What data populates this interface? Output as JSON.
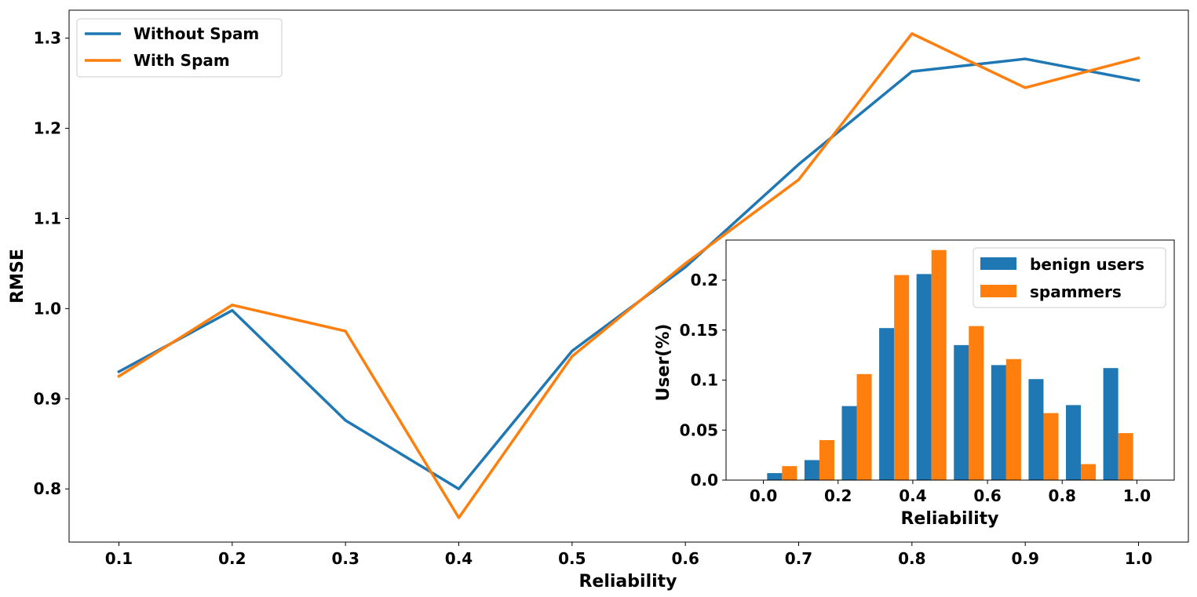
{
  "chart_data": [
    {
      "type": "line",
      "title": "",
      "xlabel": "Reliability",
      "ylabel": "RMSE",
      "x": [
        0.1,
        0.2,
        0.3,
        0.4,
        0.5,
        0.6,
        0.7,
        0.8,
        0.9,
        1.0
      ],
      "xticks": [
        "0.1",
        "0.2",
        "0.3",
        "0.4",
        "0.5",
        "0.6",
        "0.7",
        "0.8",
        "0.9",
        "1.0"
      ],
      "yticks": [
        "0.8",
        "0.9",
        "1.0",
        "1.1",
        "1.2",
        "1.3"
      ],
      "xlim": [
        0.056,
        1.044
      ],
      "ylim": [
        0.741,
        1.331
      ],
      "legend_position": "top-left",
      "series": [
        {
          "name": "Without Spam",
          "color": "#1f77b4",
          "values": [
            0.93,
            0.998,
            0.876,
            0.8,
            0.953,
            1.046,
            1.16,
            1.263,
            1.277,
            1.253
          ]
        },
        {
          "name": "With Spam",
          "color": "#ff7f0e",
          "values": [
            0.925,
            1.004,
            0.975,
            0.768,
            0.947,
            1.05,
            1.143,
            1.305,
            1.245,
            1.278
          ]
        }
      ]
    },
    {
      "type": "bar",
      "title": "",
      "xlabel": "Reliability",
      "ylabel": "User(%)",
      "bin_centers": [
        0.05,
        0.15,
        0.25,
        0.35,
        0.45,
        0.55,
        0.65,
        0.75,
        0.85,
        0.95
      ],
      "xticks": [
        "0.0",
        "0.2",
        "0.4",
        "0.6",
        "0.8",
        "1.0"
      ],
      "yticks": [
        "0.0",
        "0.05",
        "0.1",
        "0.15",
        "0.2"
      ],
      "xlim": [
        -0.1,
        1.1
      ],
      "ylim": [
        0,
        0.24
      ],
      "legend_position": "top-right",
      "series": [
        {
          "name": "benign users",
          "color": "#1f77b4",
          "values": [
            0.007,
            0.02,
            0.074,
            0.152,
            0.206,
            0.135,
            0.115,
            0.101,
            0.075,
            0.112
          ]
        },
        {
          "name": "spammers",
          "color": "#ff7f0e",
          "values": [
            0.014,
            0.04,
            0.106,
            0.205,
            0.23,
            0.154,
            0.121,
            0.067,
            0.016,
            0.047
          ]
        }
      ]
    }
  ]
}
